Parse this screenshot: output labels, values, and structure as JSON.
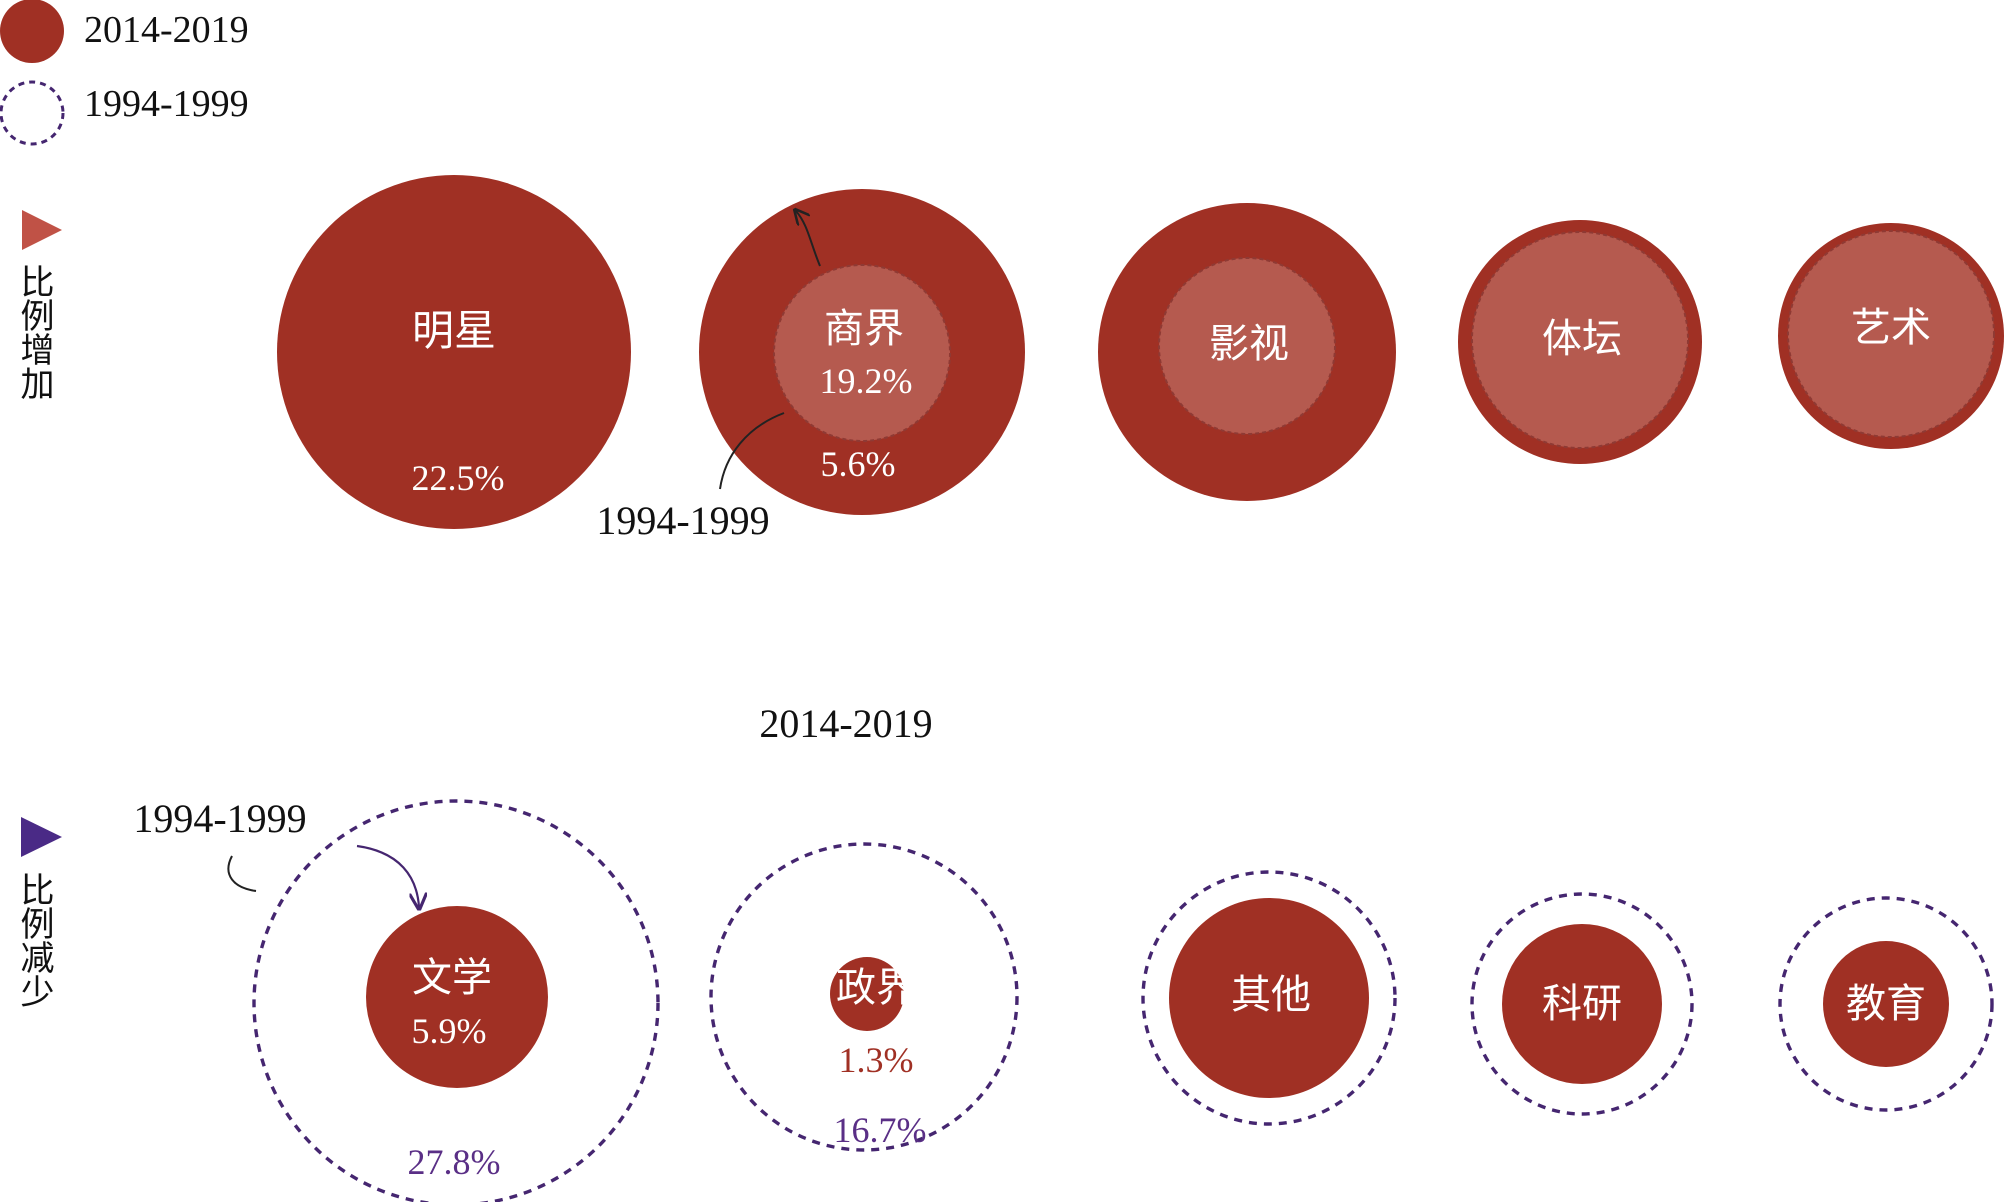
{
  "colors": {
    "red": "#a03024",
    "red_light": "#b55a4f",
    "purple": "#452670",
    "purple_text": "#5a2f86",
    "triangle_up": "#c05246",
    "triangle_down": "#4a2a86",
    "text_dark": "#111111",
    "white": "#ffffff"
  },
  "legend": {
    "filled_label": "2014-2019",
    "dashed_label": "1994-1999",
    "filled_icon": "filled-circle",
    "dashed_icon": "dashed-circle"
  },
  "group_increase": {
    "label": "比例增加",
    "icon": "triangle-right"
  },
  "group_decrease": {
    "label": "比例减少",
    "icon": "triangle-right"
  },
  "annotations": {
    "increase_inner_note": "1994-1999",
    "decrease_top_note": "2014-2019",
    "decrease_outer_note": "1994-1999"
  },
  "chart_data": [
    {
      "type": "bubble",
      "title": "",
      "group": "比例增加",
      "series": [
        {
          "name": "2014-2019",
          "values": [
            22.5,
            19.2,
            null,
            null,
            null
          ]
        },
        {
          "name": "1994-1999",
          "values": [
            null,
            5.6,
            null,
            null,
            null
          ]
        }
      ],
      "categories": [
        "明星",
        "商界",
        "影视",
        "体坛",
        "艺术"
      ],
      "labels": {
        "明星": {
          "2014-2019": "22.5%"
        },
        "商界": {
          "2014-2019": "19.2%",
          "1994-1999": "5.6%"
        }
      }
    },
    {
      "type": "bubble",
      "title": "",
      "group": "比例减少",
      "series": [
        {
          "name": "2014-2019",
          "values": [
            5.9,
            1.3,
            null,
            null,
            null
          ]
        },
        {
          "name": "1994-1999",
          "values": [
            27.8,
            16.7,
            null,
            null,
            null
          ]
        }
      ],
      "categories": [
        "文学",
        "政界",
        "其他",
        "科研",
        "教育"
      ],
      "labels": {
        "文学": {
          "2014-2019": "5.9%",
          "1994-1999": "27.8%"
        },
        "政界": {
          "2014-2019": "1.3%",
          "1994-1999": "16.7%"
        }
      }
    }
  ]
}
